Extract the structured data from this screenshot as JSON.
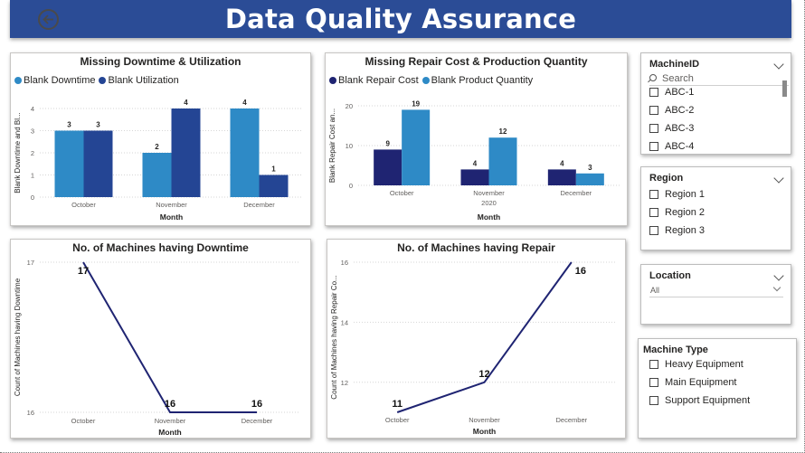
{
  "header": {
    "title": "Data Quality Assurance",
    "back_icon": "back-arrow-icon"
  },
  "colors": {
    "banner": "#2b4c96",
    "light_blue": "#2e8ac6",
    "dark_blue": "#244594",
    "navy": "#1f2472",
    "line": "#1f2472"
  },
  "charts": {
    "downtime_util": {
      "title": "Missing Downtime & Utilization",
      "legend": [
        "Blank Downtime",
        "Blank Utilization"
      ],
      "ylabel": "Blank Downtime and Bl...",
      "xlabel": "Month",
      "yticks": [
        "0",
        "1",
        "2",
        "3",
        "4"
      ]
    },
    "repair_prod": {
      "title": "Missing Repair Cost & Production Quantity",
      "legend": [
        "Blank Repair Cost",
        "Blank Product Quantity"
      ],
      "ylabel": "Blank Repair Cost an...",
      "xlabel": "Month",
      "year_label": "2020",
      "yticks": [
        "0",
        "10",
        "20"
      ]
    },
    "machines_downtime": {
      "title": "No. of Machines having Downtime",
      "ylabel": "Count of Machines having Downtime",
      "xlabel": "Month",
      "yticks": [
        "16",
        "17"
      ]
    },
    "machines_repair": {
      "title": "No. of Machines having Repair",
      "ylabel": "Count of Machines having Repair Co...",
      "xlabel": "Month",
      "yticks": [
        "12",
        "14",
        "16"
      ]
    }
  },
  "chart_data": [
    {
      "type": "bar",
      "title": "Missing Downtime & Utilization",
      "categories": [
        "October",
        "November",
        "December"
      ],
      "series": [
        {
          "name": "Blank Downtime",
          "values": [
            3,
            2,
            4
          ]
        },
        {
          "name": "Blank Utilization",
          "values": [
            3,
            4,
            1
          ]
        }
      ],
      "xlabel": "Month",
      "ylabel": "Blank Downtime and Bl...",
      "ylim": [
        0,
        4
      ],
      "legend": "top-left",
      "grid": true
    },
    {
      "type": "bar",
      "title": "Missing Repair Cost & Production Quantity",
      "categories": [
        "October",
        "November",
        "December"
      ],
      "series": [
        {
          "name": "Blank Repair Cost",
          "values": [
            9,
            4,
            4
          ]
        },
        {
          "name": "Blank Product Quantity",
          "values": [
            19,
            12,
            3
          ]
        }
      ],
      "xlabel": "Month",
      "ylabel": "Blank Repair Cost an...",
      "ylim": [
        0,
        20
      ],
      "legend": "top-left",
      "grid": true
    },
    {
      "type": "line",
      "title": "No. of Machines having Downtime",
      "categories": [
        "October",
        "November",
        "December"
      ],
      "values": [
        17,
        16,
        16
      ],
      "xlabel": "Month",
      "ylabel": "Count of Machines having Downtime",
      "ylim": [
        16,
        17
      ],
      "grid": true
    },
    {
      "type": "line",
      "title": "No. of Machines having Repair",
      "categories": [
        "October",
        "November",
        "December"
      ],
      "values": [
        11,
        12,
        16
      ],
      "xlabel": "Month",
      "ylabel": "Count of Machines having Repair Co...",
      "ylim": [
        11,
        16
      ],
      "yticks": [
        12,
        14,
        16
      ],
      "grid": true
    }
  ],
  "slicers": {
    "machine": {
      "title": "MachineID",
      "search_placeholder": "Search",
      "options": [
        "ABC-1",
        "ABC-2",
        "ABC-3",
        "ABC-4"
      ]
    },
    "region": {
      "title": "Region",
      "options": [
        "Region 1",
        "Region 2",
        "Region 3"
      ]
    },
    "location": {
      "title": "Location",
      "selected": "All"
    },
    "machine_type": {
      "title": "Machine Type",
      "options": [
        "Heavy Equipment",
        "Main Equipment",
        "Support Equipment"
      ]
    }
  }
}
